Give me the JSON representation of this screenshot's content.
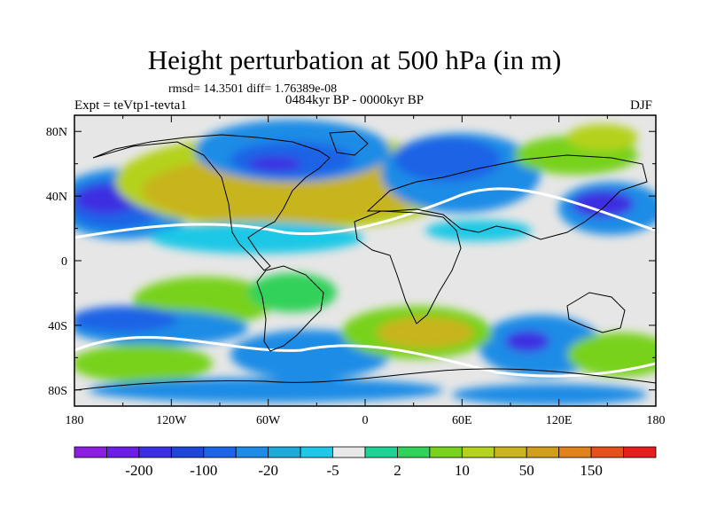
{
  "chart_data": {
    "type": "heatmap",
    "title": "Height perturbation at 500 hPa (in m)",
    "stats_text": "rmsd= 14.3501 diff= 1.76389e-08",
    "left_label": "Expt = teVtp1-tevta1",
    "center_label": "0484kyr BP - 0000kyr BP",
    "right_label": "DJF",
    "x_ticks": [
      "180",
      "120W",
      "60W",
      "0",
      "60E",
      "120E",
      "180"
    ],
    "x_values": [
      -180,
      -120,
      -60,
      0,
      60,
      120,
      180
    ],
    "y_ticks": [
      "80N",
      "40N",
      "0",
      "40S",
      "80S"
    ],
    "y_values": [
      80,
      40,
      0,
      -40,
      -80
    ],
    "xlim": [
      -180,
      180
    ],
    "ylim": [
      -90,
      90
    ],
    "colorbar_labels": [
      "-200",
      "-100",
      "-20",
      "-5",
      "2",
      "10",
      "50",
      "150"
    ],
    "colorbar_colors": [
      "#8b1ee0",
      "#6a1ee6",
      "#3c2ee2",
      "#1e46d8",
      "#1e64e6",
      "#1e8ce6",
      "#1eaad8",
      "#1ec8e6",
      "#e8e8e8",
      "#1ed296",
      "#32d25a",
      "#78d21e",
      "#b4d21e",
      "#c8b41e",
      "#d29e1e",
      "#e0821e",
      "#e6501e",
      "#e61e1e"
    ]
  }
}
